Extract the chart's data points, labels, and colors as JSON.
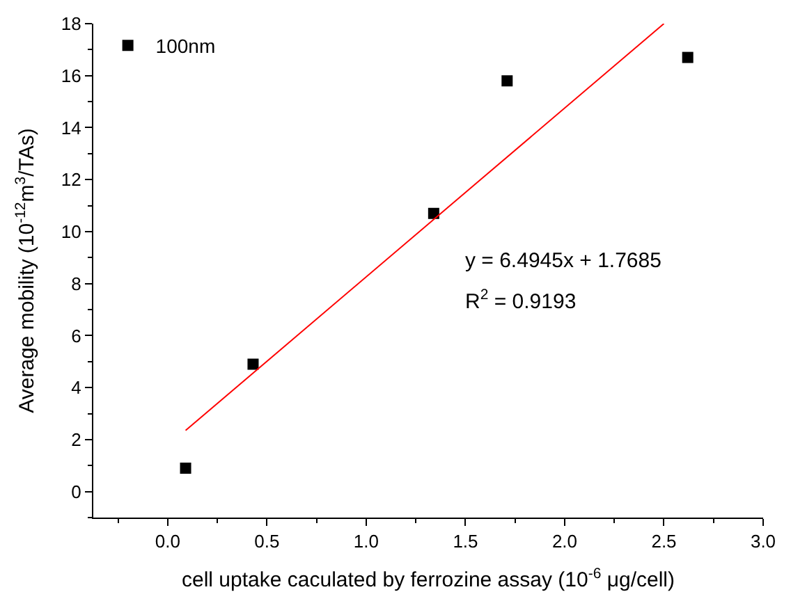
{
  "chart_data": {
    "type": "scatter",
    "xlabel": "cell uptake caculated by ferrozine assay (10$^{-6}$ μg/cell)",
    "ylabel": "Average mobility (10$^{-12}$m$^{3}$/TAs)",
    "x": [
      0.09,
      0.43,
      1.34,
      1.71,
      2.62
    ],
    "series": [
      {
        "name": "100nm",
        "color": "#000000",
        "marker": "square",
        "values": [
          0.9,
          4.9,
          10.7,
          15.8,
          16.7
        ]
      },
      {
        "type": "line",
        "color": "#ff0000",
        "x": [
          0.09,
          2.5
        ],
        "values": [
          2.35,
          18.0
        ]
      }
    ],
    "annotations": [
      "y = 6.4945x + 1.7685",
      "R$^{2}$ = 0.9193"
    ],
    "xlim": [
      -0.375,
      3.0
    ],
    "ylim": [
      -1,
      18
    ],
    "xticks": [
      {
        "value": 0,
        "label": "0.0"
      },
      0.5,
      {
        "value": 1,
        "label": "1.0"
      },
      1.5,
      {
        "value": 2,
        "label": "2.0"
      },
      2.5,
      {
        "value": 3,
        "label": "3.0"
      }
    ],
    "yticks": [
      0,
      2,
      4,
      6,
      8,
      10,
      12,
      14,
      16,
      18
    ],
    "legend": "top left"
  }
}
